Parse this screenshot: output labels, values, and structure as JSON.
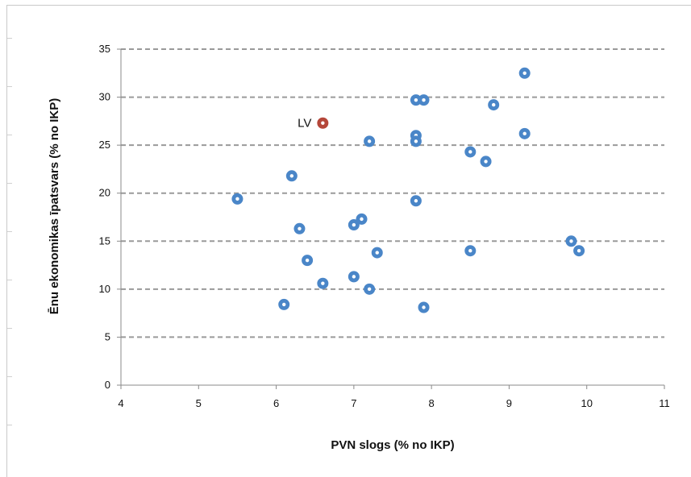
{
  "chart_data": {
    "type": "scatter",
    "title": "",
    "xlabel": "PVN slogs (% no IKP)",
    "ylabel": "Ēnu ekonomikas īpatsvars (% no IKP)",
    "xlim": [
      4,
      11
    ],
    "ylim": [
      0,
      35
    ],
    "xticks": [
      "4",
      "5",
      "6",
      "7",
      "8",
      "9",
      "10",
      "11"
    ],
    "yticks": [
      "0",
      "5",
      "10",
      "15",
      "20",
      "25",
      "30",
      "35"
    ],
    "grid": "horizontal-dashed",
    "series": [
      {
        "color": "#4a86c8",
        "points": [
          {
            "x": 5.5,
            "y": 19.4
          },
          {
            "x": 6.1,
            "y": 8.4
          },
          {
            "x": 6.2,
            "y": 21.8
          },
          {
            "x": 6.3,
            "y": 16.3
          },
          {
            "x": 6.4,
            "y": 13.0
          },
          {
            "x": 6.6,
            "y": 10.6
          },
          {
            "x": 7.0,
            "y": 11.3
          },
          {
            "x": 7.0,
            "y": 16.7
          },
          {
            "x": 7.1,
            "y": 17.3
          },
          {
            "x": 7.2,
            "y": 25.4
          },
          {
            "x": 7.2,
            "y": 10.0
          },
          {
            "x": 7.3,
            "y": 13.8
          },
          {
            "x": 7.8,
            "y": 29.7
          },
          {
            "x": 7.9,
            "y": 29.7
          },
          {
            "x": 7.8,
            "y": 26.0
          },
          {
            "x": 7.8,
            "y": 25.4
          },
          {
            "x": 7.8,
            "y": 19.2
          },
          {
            "x": 7.9,
            "y": 8.1
          },
          {
            "x": 8.5,
            "y": 24.3
          },
          {
            "x": 8.5,
            "y": 14.0
          },
          {
            "x": 8.7,
            "y": 23.3
          },
          {
            "x": 8.8,
            "y": 29.2
          },
          {
            "x": 9.2,
            "y": 32.5
          },
          {
            "x": 9.2,
            "y": 26.2
          },
          {
            "x": 9.8,
            "y": 15.0
          },
          {
            "x": 9.9,
            "y": 14.0
          }
        ]
      }
    ],
    "highlight": {
      "label": "LV",
      "x": 6.6,
      "y": 27.3,
      "color": "#b5473a"
    }
  }
}
